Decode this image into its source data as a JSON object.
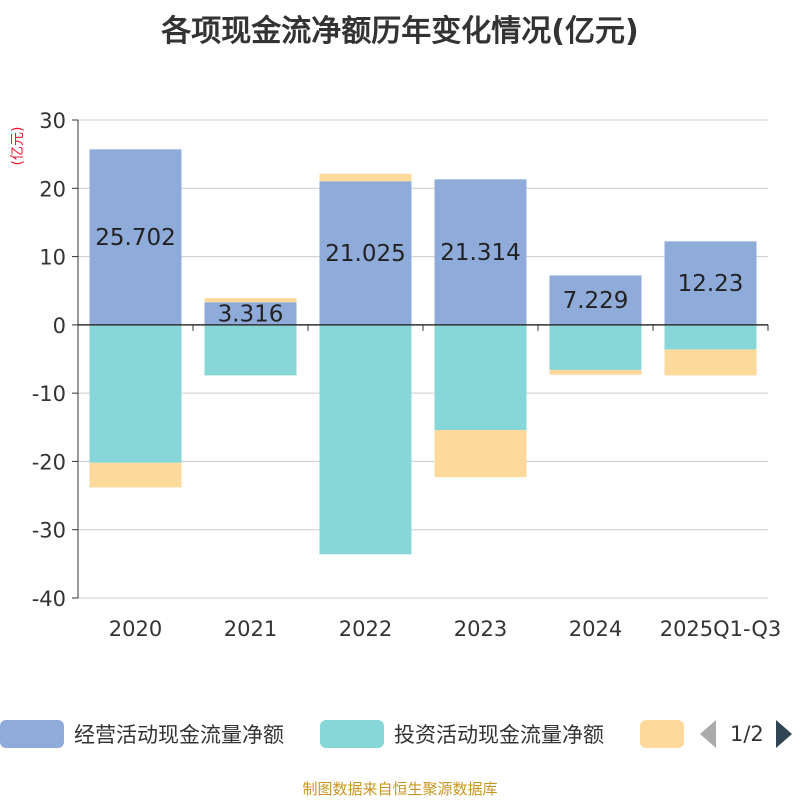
{
  "chart_data": {
    "type": "bar",
    "stacked": true,
    "title": "各项现金流净额历年变化情况(亿元)",
    "ylabel": "(亿元)",
    "xlabel": "",
    "categories": [
      "2020",
      "2021",
      "2022",
      "2023",
      "2024",
      "2025Q1-Q3"
    ],
    "ylim": [
      -40,
      30
    ],
    "yticks": [
      30,
      20,
      10,
      0,
      -10,
      -20,
      -30,
      -40
    ],
    "grid": true,
    "series": [
      {
        "name": "经营活动现金流量净额",
        "color": "#8fabda",
        "values": [
          25.702,
          3.316,
          21.025,
          21.314,
          7.229,
          12.23
        ],
        "labels": [
          "25.702",
          "3.316",
          "21.025",
          "21.314",
          "7.229",
          "12.23"
        ]
      },
      {
        "name": "投资活动现金流量净额",
        "color": "#87d6d8",
        "values": [
          -20.2,
          -7.4,
          -33.6,
          -15.4,
          -6.6,
          -3.6
        ],
        "labels": []
      },
      {
        "name": "",
        "color": "#fdd99b",
        "values": [
          -3.6,
          0.6,
          1.1,
          -6.9,
          -0.7,
          -3.8
        ],
        "labels": []
      }
    ]
  },
  "legend": {
    "page": "1/2",
    "items": [
      {
        "label": "经营活动现金流量净额",
        "color": "#8fabda"
      },
      {
        "label": "投资活动现金流量净额",
        "color": "#87d6d8"
      },
      {
        "label": "",
        "color": "#fdd99b"
      }
    ]
  },
  "source": "制图数据来自恒生聚源数据库"
}
